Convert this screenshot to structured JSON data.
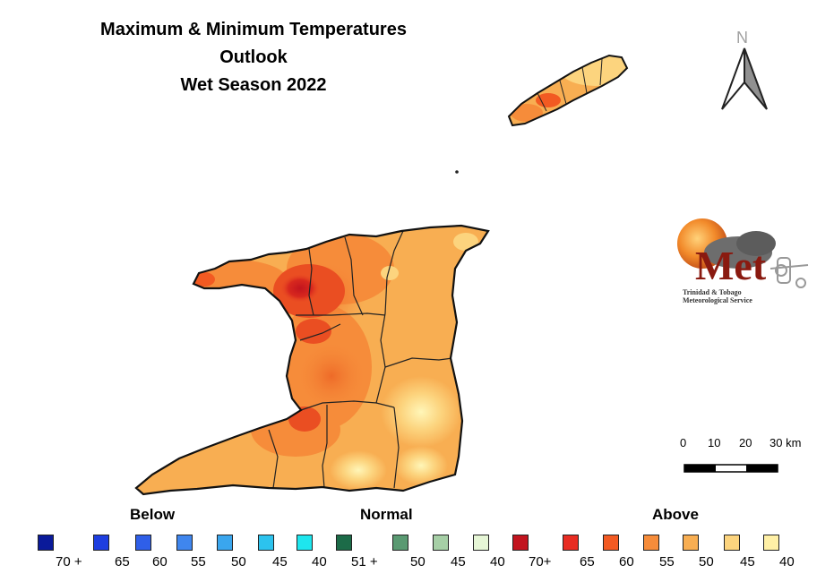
{
  "title": {
    "line1": "Maximum & Minimum Temperatures",
    "line2": "Outlook",
    "line3": "Wet Season 2022"
  },
  "north_arrow": {
    "label": "N"
  },
  "logo": {
    "brand": "Met",
    "org_line1": "Trinidad & Tobago",
    "org_line2": "Meteorological Service"
  },
  "scale_bar": {
    "ticks": [
      "0",
      "10",
      "20",
      "30 km"
    ]
  },
  "legend": {
    "categories": [
      "Below",
      "Normal",
      "Above"
    ],
    "items": [
      {
        "label": "70 +",
        "color": "#0a1a9a"
      },
      {
        "label": "65",
        "color": "#1e3ee0"
      },
      {
        "label": "60",
        "color": "#2f5fe8"
      },
      {
        "label": "55",
        "color": "#3f86ee"
      },
      {
        "label": "50",
        "color": "#3aa6ee"
      },
      {
        "label": "45",
        "color": "#2cc3ee"
      },
      {
        "label": "40",
        "color": "#1ee6ee"
      },
      {
        "label": "51 +",
        "color": "#1c6b48"
      },
      {
        "label": "50",
        "color": "#5a9a72"
      },
      {
        "label": "45",
        "color": "#a6cfa6"
      },
      {
        "label": "40",
        "color": "#e6f6d6"
      },
      {
        "label": "70+",
        "color": "#c2141e"
      },
      {
        "label": "65",
        "color": "#e82c22"
      },
      {
        "label": "60",
        "color": "#f25a22"
      },
      {
        "label": "55",
        "color": "#f68c3a"
      },
      {
        "label": "50",
        "color": "#f8ae52"
      },
      {
        "label": "45",
        "color": "#fcd47e"
      },
      {
        "label": "40",
        "color": "#fff0a6"
      }
    ]
  }
}
